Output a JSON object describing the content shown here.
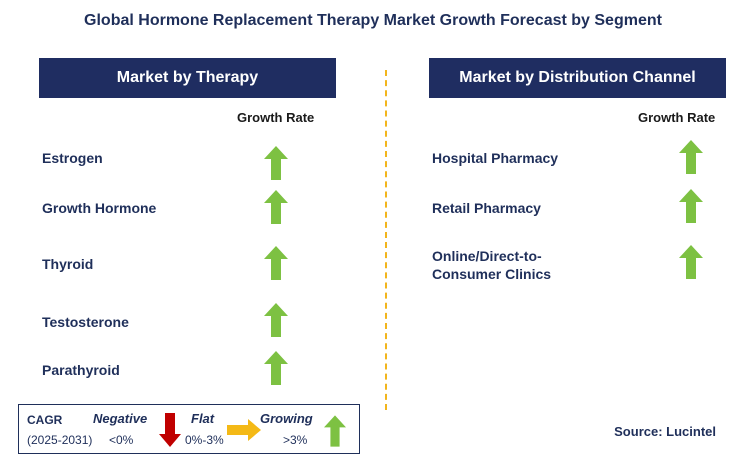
{
  "title": "Global Hormone Replacement Therapy Market Growth Forecast by Segment",
  "colors": {
    "header_bg": "#1f2d61",
    "growing": "#7dc142",
    "negative": "#c00000",
    "flat": "#f4b916",
    "divider": "#f2b51c"
  },
  "left_panel": {
    "header": "Market by Therapy",
    "column_label": "Growth Rate",
    "items": [
      {
        "label": "Estrogen",
        "trend": "growing"
      },
      {
        "label": "Growth Hormone",
        "trend": "growing"
      },
      {
        "label": "Thyroid",
        "trend": "growing"
      },
      {
        "label": "Testosterone",
        "trend": "growing"
      },
      {
        "label": "Parathyroid",
        "trend": "growing"
      }
    ]
  },
  "right_panel": {
    "header": "Market by Distribution Channel",
    "column_label": "Growth Rate",
    "items": [
      {
        "label": "Hospital Pharmacy",
        "trend": "growing"
      },
      {
        "label": "Retail Pharmacy",
        "trend": "growing"
      },
      {
        "label_line1": "Online/Direct-to-",
        "label_line2": "Consumer Clinics",
        "trend": "growing"
      }
    ]
  },
  "legend": {
    "cagr_label": "CAGR",
    "period": "(2025-2031)",
    "negative_label": "Negative",
    "negative_range": "<0%",
    "flat_label": "Flat",
    "flat_range": "0%-3%",
    "growing_label": "Growing",
    "growing_range": ">3%"
  },
  "source": "Source: Lucintel"
}
